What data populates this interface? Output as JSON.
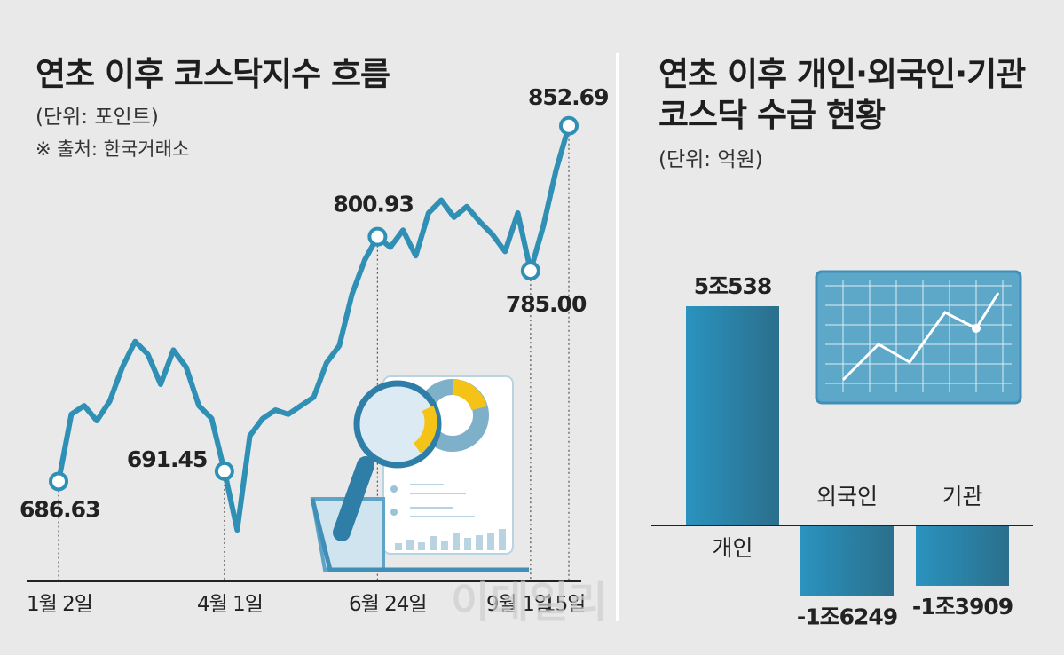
{
  "left": {
    "title": "연초 이후 코스닥지수 흐름",
    "unit": "(단위: 포인트)",
    "source": "※ 출처: 한국거래소"
  },
  "right": {
    "title_line1": "연초 이후 개인·외국인·기관",
    "title_line2": "코스닥 수급 현황",
    "unit": "(단위: 억원)"
  },
  "watermark": "이데일리",
  "chart_data": [
    {
      "type": "line",
      "title": "연초 이후 코스닥지수 흐름",
      "unit": "포인트",
      "x_ticks": [
        "1월 2일",
        "4월 1일",
        "6월 24일",
        "9월 1일",
        "15일"
      ],
      "ylim": [
        640,
        870
      ],
      "marked_points": [
        {
          "label": "686.63",
          "value": 686.63,
          "index": 0
        },
        {
          "label": "691.45",
          "value": 691.45,
          "index": 13
        },
        {
          "label": "800.93",
          "value": 800.93,
          "index": 25
        },
        {
          "label": "785.00",
          "value": 785.0,
          "index": 37
        },
        {
          "label": "852.69",
          "value": 852.69,
          "index": 40
        }
      ],
      "values": [
        686.63,
        718,
        722,
        715,
        724,
        740,
        752,
        746,
        732,
        748,
        740,
        722,
        716,
        691.45,
        664,
        708,
        716,
        720,
        718,
        722,
        726,
        742,
        750,
        774,
        790,
        800.93,
        796,
        804,
        792,
        812,
        818,
        810,
        815,
        808,
        802,
        794,
        812,
        785.0,
        806,
        832,
        852.69
      ]
    },
    {
      "type": "bar",
      "title": "연초 이후 개인·외국인·기관 코스닥 수급 현황",
      "unit": "억원",
      "categories": [
        "개인",
        "외국인",
        "기관"
      ],
      "values": [
        50538,
        -16249,
        -13909
      ],
      "value_labels": [
        "5조538",
        "-1조6249",
        "-1조3909"
      ]
    }
  ]
}
